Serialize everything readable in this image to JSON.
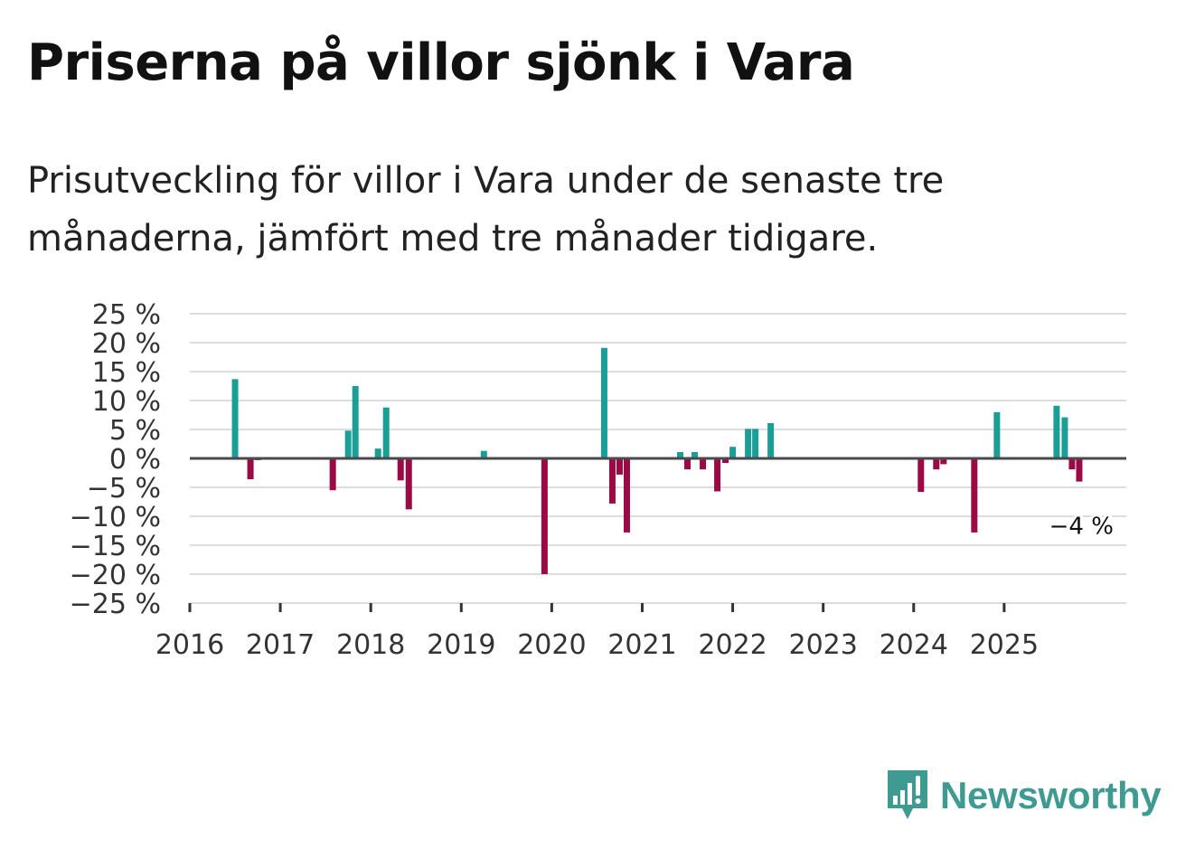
{
  "title": "Priserna på villor sjönk i Vara",
  "subtitle": "Prisutveckling för villor i Vara under de senaste tre månaderna, jämfört med tre månader tidigare.",
  "brand": {
    "name": "Newsworthy",
    "color": "#3f9a91"
  },
  "colors": {
    "positive": "#1a9e96",
    "negative": "#9b0a45",
    "zero_line": "#4a4a4a",
    "grid": "#dddddd"
  },
  "chart_data": {
    "type": "bar",
    "title": "Priserna på villor sjönk i Vara",
    "xlabel": "",
    "ylabel": "",
    "ylim": [
      -25,
      25
    ],
    "yticks": [
      25,
      20,
      15,
      10,
      5,
      0,
      -5,
      -10,
      -15,
      -20,
      -25
    ],
    "ytick_labels": [
      "25 %",
      "20 %",
      "15 %",
      "10 %",
      "5 %",
      "0 %",
      "−5 %",
      "−10 %",
      "−15 %",
      "−20 %",
      "−25 %"
    ],
    "x_range": [
      2016.0,
      2026.35
    ],
    "xticks": [
      2016,
      2017,
      2018,
      2019,
      2020,
      2021,
      2022,
      2023,
      2024,
      2025
    ],
    "xtick_labels": [
      "2016",
      "2017",
      "2018",
      "2019",
      "2020",
      "2021",
      "2022",
      "2023",
      "2024",
      "2025"
    ],
    "series": [
      {
        "name": "Prisutveckling",
        "points": [
          {
            "x": 2016.5,
            "v": 13.7
          },
          {
            "x": 2016.67,
            "v": -3.6
          },
          {
            "x": 2016.75,
            "v": -0.3
          },
          {
            "x": 2017.58,
            "v": -5.5
          },
          {
            "x": 2017.75,
            "v": 4.8
          },
          {
            "x": 2017.83,
            "v": 12.5
          },
          {
            "x": 2018.08,
            "v": 1.7
          },
          {
            "x": 2018.17,
            "v": 8.8
          },
          {
            "x": 2018.33,
            "v": -3.8
          },
          {
            "x": 2018.42,
            "v": -8.8
          },
          {
            "x": 2019.25,
            "v": 1.3
          },
          {
            "x": 2019.92,
            "v": -20.0
          },
          {
            "x": 2020.58,
            "v": 19.1
          },
          {
            "x": 2020.67,
            "v": -7.8
          },
          {
            "x": 2020.75,
            "v": -2.8
          },
          {
            "x": 2020.83,
            "v": -12.8
          },
          {
            "x": 2021.42,
            "v": 1.1
          },
          {
            "x": 2021.5,
            "v": -1.9
          },
          {
            "x": 2021.58,
            "v": 1.1
          },
          {
            "x": 2021.67,
            "v": -1.9
          },
          {
            "x": 2021.83,
            "v": -5.7
          },
          {
            "x": 2021.92,
            "v": -0.8
          },
          {
            "x": 2022.0,
            "v": 2.0
          },
          {
            "x": 2022.17,
            "v": 5.1
          },
          {
            "x": 2022.25,
            "v": 5.1
          },
          {
            "x": 2022.42,
            "v": 6.1
          },
          {
            "x": 2024.08,
            "v": -5.8
          },
          {
            "x": 2024.25,
            "v": -1.9
          },
          {
            "x": 2024.33,
            "v": -1.0
          },
          {
            "x": 2024.67,
            "v": -12.8
          },
          {
            "x": 2024.92,
            "v": 8.0
          },
          {
            "x": 2025.58,
            "v": 9.1
          },
          {
            "x": 2025.67,
            "v": 7.1
          },
          {
            "x": 2025.75,
            "v": -1.9
          },
          {
            "x": 2025.83,
            "v": -4.0
          }
        ]
      }
    ],
    "annotations": [
      {
        "text": "−4 %",
        "x": 2025.83,
        "v": -4.0
      }
    ]
  }
}
